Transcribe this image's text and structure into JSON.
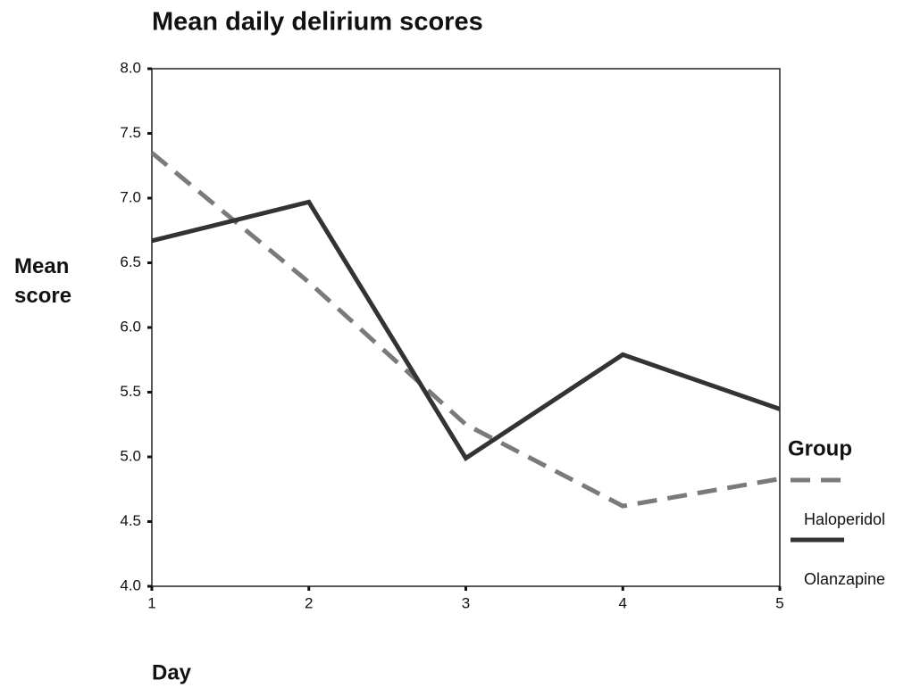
{
  "chart_data": {
    "type": "line",
    "title": "Mean daily delirium scores",
    "x_label": "Day",
    "y_label": "Mean score",
    "legend_title": "Group",
    "x": [
      1,
      2,
      3,
      4,
      5
    ],
    "series": [
      {
        "name": "Haloperidol",
        "color": "#7a7a7a",
        "dashed": true,
        "values": [
          7.35,
          6.35,
          5.25,
          4.62,
          4.83
        ]
      },
      {
        "name": "Olanzapine",
        "color": "#333333",
        "dashed": false,
        "values": [
          6.67,
          6.97,
          4.99,
          5.79,
          5.37
        ]
      }
    ],
    "xlim": [
      1,
      5
    ],
    "xticks": [
      1,
      2,
      3,
      4,
      5
    ],
    "ylim": [
      4,
      8
    ],
    "yticks": [
      {
        "value": 4,
        "label": "4.0"
      },
      {
        "value": 4.5,
        "label": "4.5"
      },
      {
        "value": 5,
        "label": "5.0"
      },
      {
        "value": 5.5,
        "label": "5.5"
      },
      {
        "value": 6,
        "label": "6.0"
      },
      {
        "value": 6.5,
        "label": "6.5"
      },
      {
        "value": 7,
        "label": "7.0"
      },
      {
        "value": 7.5,
        "label": "7.5"
      },
      {
        "value": 8,
        "label": "8.0"
      }
    ],
    "grid": false
  }
}
